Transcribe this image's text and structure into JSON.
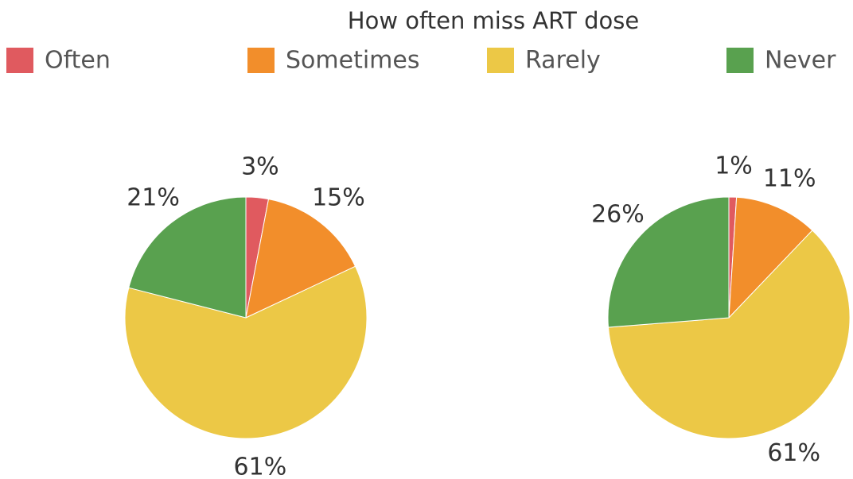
{
  "title": "How often miss ART dose",
  "categories": [
    "Often",
    "Sometimes",
    "Rarely",
    "Never"
  ],
  "colors": [
    "#e05a5f",
    "#f28e2b",
    "#ecc846",
    "#59a14f"
  ],
  "chart_data": [
    {
      "type": "pie",
      "values": [
        3,
        15,
        61,
        21
      ],
      "value_labels": [
        "3%",
        "15%",
        "61%",
        "21%"
      ]
    },
    {
      "type": "pie",
      "values": [
        1,
        11,
        61,
        26
      ],
      "value_labels": [
        "1%",
        "11%",
        "61%",
        "26%"
      ]
    }
  ]
}
